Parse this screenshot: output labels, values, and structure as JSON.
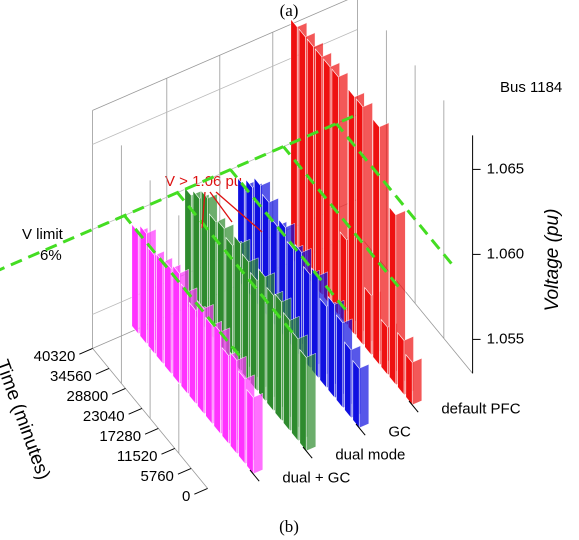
{
  "chart_data": {
    "type": "bar3d",
    "caption_top": "(a)",
    "caption_bottom": "(b)",
    "annotations": {
      "bus": "Bus 1184",
      "exceed": "V > 1.06 pu",
      "limit_line1": "V limit",
      "limit_line2": "6%"
    },
    "x_label": "Time (minutes)",
    "y_label": "Voltage (pu)",
    "x": [
      0,
      2880,
      5760,
      8640,
      11520,
      14400,
      17280,
      20160,
      23040,
      25920,
      28800,
      31680,
      34560,
      37440,
      40320
    ],
    "xlim": [
      0,
      40320
    ],
    "xticks": [
      0,
      5760,
      11520,
      17280,
      23040,
      28800,
      34560,
      40320
    ],
    "ylim": [
      1.053,
      1.067
    ],
    "yticks": [
      1.055,
      {
        "value": 1.06,
        "label": "1.060"
      },
      1.065
    ],
    "limit": 1.06,
    "series": [
      {
        "name": "dual + GC",
        "color": "#ff33ff",
        "values": [
          1.0575,
          1.058,
          1.0585,
          1.0582,
          1.059,
          1.0588,
          1.0592,
          1.0585,
          1.059,
          1.0595,
          1.0592,
          1.059,
          1.0588,
          1.0595,
          1.059
        ]
      },
      {
        "name": "dual mode",
        "color": "#2e8b2e",
        "values": [
          1.0585,
          1.059,
          1.0595,
          1.06,
          1.0598,
          1.0603,
          1.0595,
          1.06,
          1.0605,
          1.0598,
          1.0602,
          1.06,
          1.0608,
          1.0602,
          1.0598
        ]
      },
      {
        "name": "GC",
        "color": "#1010e0",
        "values": [
          1.0565,
          1.057,
          1.058,
          1.0585,
          1.0578,
          1.059,
          1.0585,
          1.0592,
          1.0588,
          1.0595,
          1.059,
          1.0598,
          1.0602,
          1.0595,
          1.059
        ]
      },
      {
        "name": "default PFC",
        "color": "#ee1111",
        "values": [
          1.0555,
          1.0562,
          1.063,
          1.0558,
          1.067,
          1.0565,
          1.067,
          1.067,
          1.058,
          1.067,
          1.067,
          1.067,
          1.067,
          1.067,
          1.067
        ]
      }
    ]
  }
}
